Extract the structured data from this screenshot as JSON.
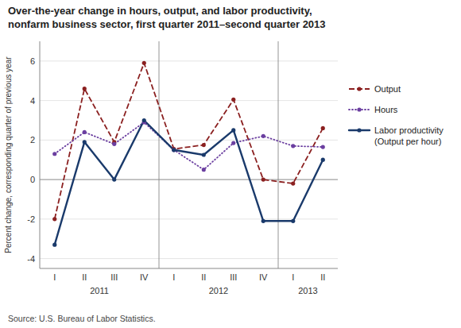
{
  "chart_data": {
    "type": "line",
    "title": "Over-the-year change in hours, output, and labor productivity,",
    "subtitle": "nonfarm business sector, first quarter 2011–second quarter 2013",
    "y_label": "Percent change, corresponding quarter of previous year",
    "source": "Source: U.S. Bureau of Labor Statistics.",
    "categories": [
      "I",
      "II",
      "III",
      "IV",
      "I",
      "II",
      "III",
      "IV",
      "I",
      "II"
    ],
    "annotations": [
      {
        "text": "2011",
        "x": 1.5
      },
      {
        "text": "2012",
        "x": 5.5
      },
      {
        "text": "2013",
        "x": 8.5
      }
    ],
    "separators": [
      3.5,
      7.5
    ],
    "series": [
      {
        "name": "Output",
        "color": "#8B2020",
        "line_style": "dashed",
        "marker": "circle",
        "values": [
          -2.0,
          4.6,
          1.9,
          5.9,
          1.55,
          1.75,
          4.05,
          0.0,
          -0.2,
          2.6
        ]
      },
      {
        "name": "Hours",
        "color": "#6B3FA0",
        "line_style": "dotted",
        "marker": "circle",
        "values": [
          1.3,
          2.4,
          1.8,
          2.9,
          1.5,
          0.5,
          1.85,
          2.2,
          1.7,
          1.65
        ]
      },
      {
        "name": "Labor productivity\n(Output per hour)",
        "color": "#1A3A6B",
        "line_style": "solid",
        "marker": "circle",
        "values": [
          -3.3,
          1.9,
          0.0,
          3.0,
          1.5,
          1.25,
          2.5,
          -2.1,
          -2.1,
          1.0
        ]
      }
    ],
    "ylim": [
      -4.5,
      7.0
    ],
    "yticks": [
      -4,
      -2,
      0,
      2,
      4,
      6
    ],
    "grid": true,
    "legend": "right"
  }
}
